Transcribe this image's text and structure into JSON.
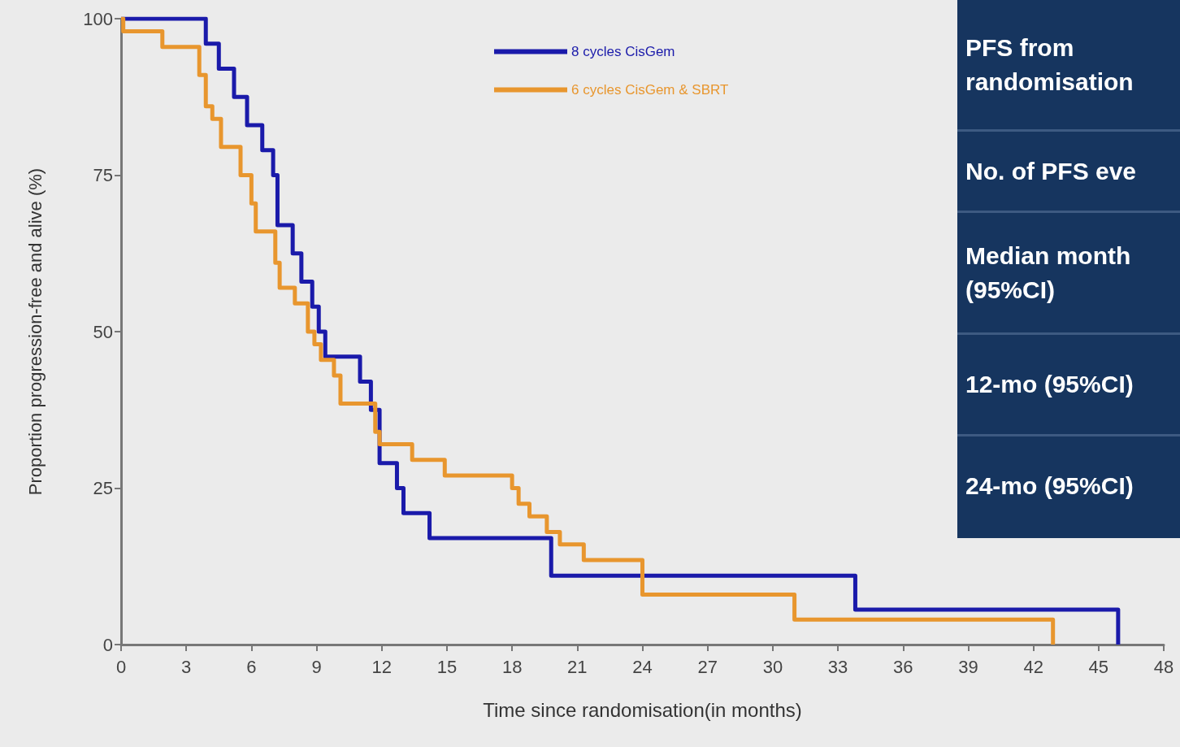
{
  "chart_data": {
    "type": "step",
    "xlabel": "Time since randomisation(in months)",
    "ylabel": "Proportion progression-free and alive (%)",
    "xlim": [
      0,
      48
    ],
    "xticks": [
      0,
      3,
      6,
      9,
      12,
      15,
      18,
      21,
      24,
      27,
      30,
      33,
      36,
      39,
      42,
      45,
      48
    ],
    "ylim": [
      0,
      100
    ],
    "yticks": [
      0,
      25,
      50,
      75,
      100
    ],
    "grid": false,
    "legend": "top",
    "marker": "none",
    "line_style": "solid",
    "series": [
      {
        "name": "8 cycles CisGem",
        "color": "#1a1aaa",
        "x": [
          0,
          3.9,
          4.5,
          5.2,
          5.8,
          6.5,
          7.0,
          7.2,
          7.9,
          8.3,
          8.8,
          9.1,
          9.4,
          11.0,
          11.5,
          11.9,
          12.7,
          13.0,
          14.2,
          19.8,
          33.8,
          45.9
        ],
        "values": [
          100,
          96,
          92,
          87.5,
          83,
          79,
          75,
          67,
          62.5,
          58,
          54,
          50,
          46,
          42,
          37.5,
          29,
          25,
          21,
          17,
          11,
          5.6,
          0
        ]
      },
      {
        "name": "6 cycles CisGem & SBRT",
        "color": "#e8962e",
        "x": [
          0,
          0.1,
          1.9,
          3.6,
          3.9,
          4.2,
          4.6,
          5.5,
          6.0,
          6.2,
          7.1,
          7.3,
          8.0,
          8.6,
          8.9,
          9.2,
          9.8,
          10.1,
          11.7,
          11.9,
          13.4,
          14.9,
          18.0,
          18.3,
          18.8,
          19.6,
          20.2,
          21.3,
          24.0,
          31.0,
          42.9
        ],
        "values": [
          100,
          98,
          95.5,
          91,
          86,
          84,
          79.5,
          75,
          70.5,
          66,
          61,
          57,
          54.5,
          50,
          48,
          45.5,
          43,
          38.5,
          34,
          32,
          29.5,
          27,
          25,
          22.5,
          20.5,
          18,
          16,
          13.5,
          8,
          4,
          0
        ]
      }
    ],
    "annotations": [
      "PFS from randomisation",
      "No. of PFS eve",
      "Median month (95%CI)",
      "12-mo (95%CI)",
      "24-mo (95%CI)"
    ]
  }
}
